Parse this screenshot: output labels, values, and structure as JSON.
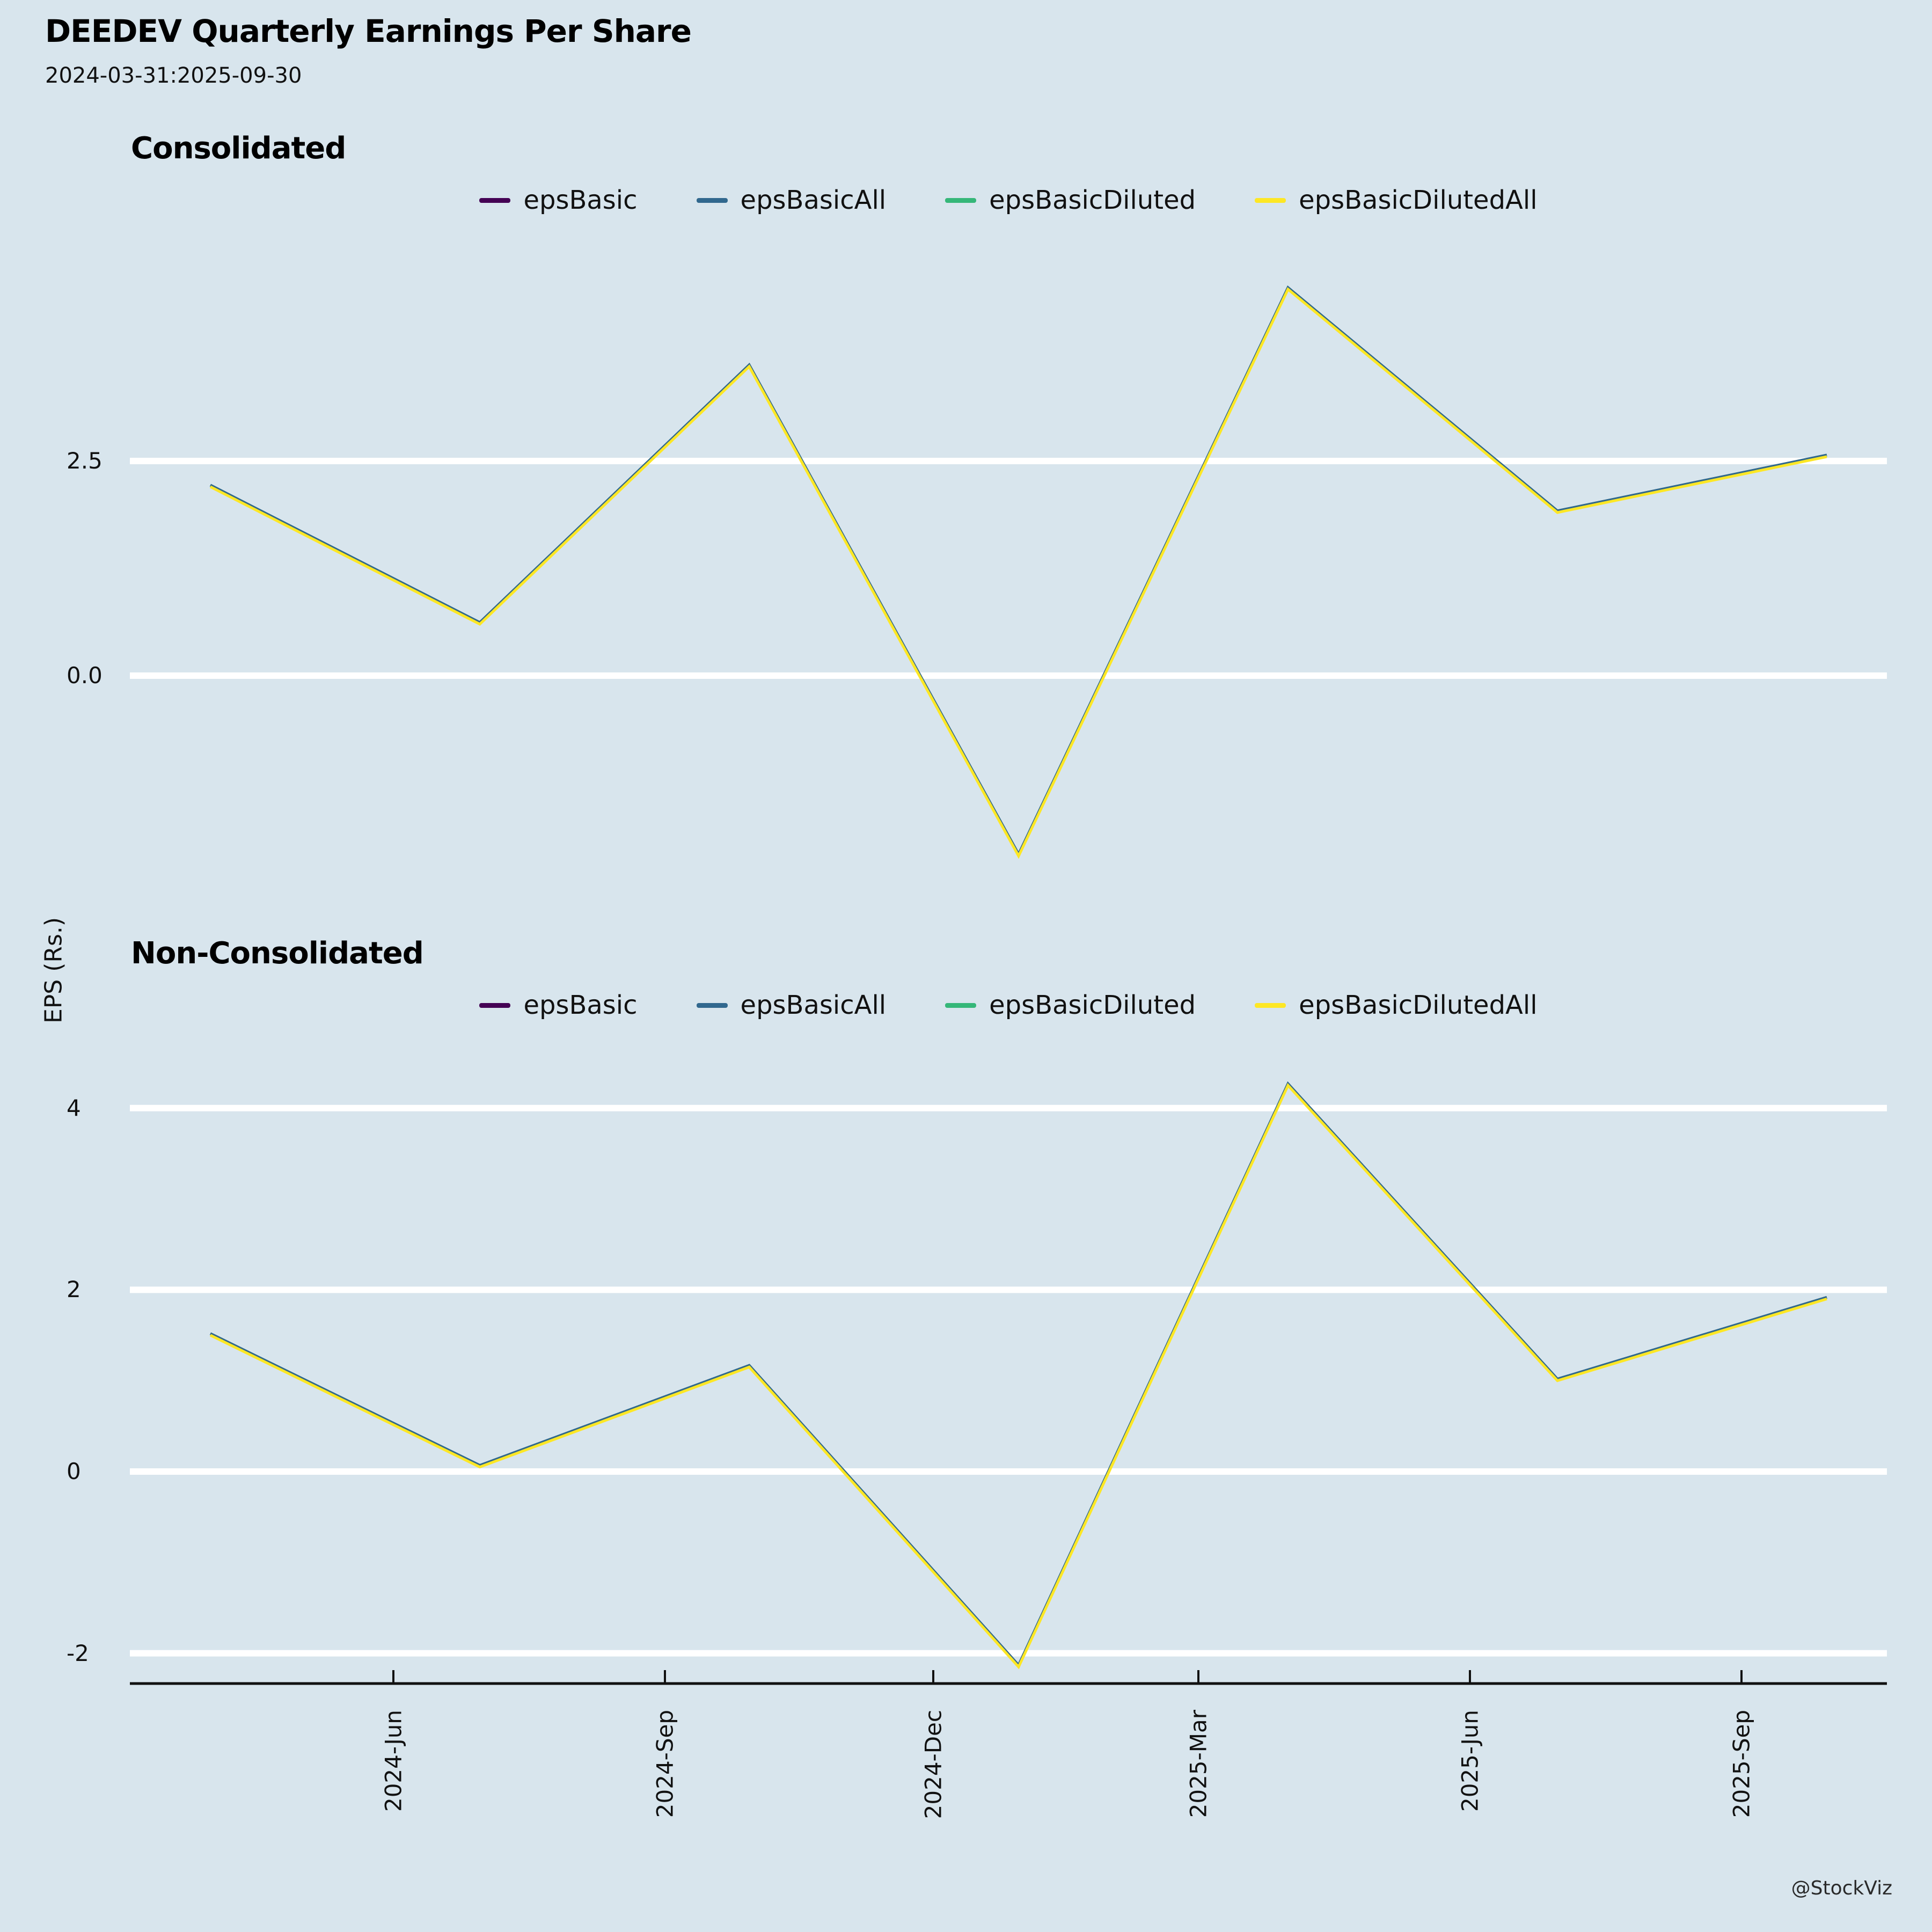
{
  "header": {
    "title": "DEEDEV Quarterly Earnings Per Share",
    "subtitle": "2024-03-31:2025-09-30"
  },
  "y_axis_label": "EPS (Rs.)",
  "footer": "@StockViz",
  "legend": {
    "items": [
      {
        "label": "epsBasic",
        "color": "#440154"
      },
      {
        "label": "epsBasicAll",
        "color": "#31688e"
      },
      {
        "label": "epsBasicDiluted",
        "color": "#35b779"
      },
      {
        "label": "epsBasicDilutedAll",
        "color": "#fde725"
      }
    ]
  },
  "chart_data": [
    {
      "type": "line",
      "title": "Consolidated",
      "categories": [
        "2024-03-31",
        "2024-06-30",
        "2024-09-30",
        "2024-12-31",
        "2025-03-31",
        "2025-06-30",
        "2025-09-30"
      ],
      "x_tick_labels": [
        "2024-Jun",
        "2024-Sep",
        "2024-Dec",
        "2025-Mar",
        "2025-Jun",
        "2025-Sep"
      ],
      "ylabel": "EPS (Rs.)",
      "ylim": [
        -2.7,
        4.9
      ],
      "grid": "horizontal-white",
      "legend_position": "top-center",
      "y_ticks": [
        {
          "label": "2.5",
          "value": 2.5
        },
        {
          "label": "0.0",
          "value": 0
        }
      ],
      "series": [
        {
          "name": "epsBasic",
          "color": "#440154",
          "values": [
            2.2,
            0.6,
            3.6,
            -2.1,
            4.5,
            1.9,
            2.55
          ]
        },
        {
          "name": "epsBasicAll",
          "color": "#31688e",
          "values": [
            2.2,
            0.6,
            3.6,
            -2.1,
            4.5,
            1.9,
            2.55
          ]
        },
        {
          "name": "epsBasicDiluted",
          "color": "#35b779",
          "values": [
            2.2,
            0.6,
            3.6,
            -2.1,
            4.5,
            1.9,
            2.55
          ]
        },
        {
          "name": "epsBasicDilutedAll",
          "color": "#fde725",
          "values": [
            2.2,
            0.6,
            3.6,
            -2.1,
            4.5,
            1.9,
            2.55
          ]
        }
      ]
    },
    {
      "type": "line",
      "title": "Non-Consolidated",
      "categories": [
        "2024-03-31",
        "2024-06-30",
        "2024-09-30",
        "2024-12-31",
        "2025-03-31",
        "2025-06-30",
        "2025-09-30"
      ],
      "x_tick_labels": [
        "2024-Jun",
        "2024-Sep",
        "2024-Dec",
        "2025-Mar",
        "2025-Jun",
        "2025-Sep"
      ],
      "ylabel": "EPS (Rs.)",
      "ylim": [
        -2.4,
        4.6
      ],
      "grid": "horizontal-white",
      "legend_position": "top-center",
      "y_ticks": [
        {
          "label": "4",
          "value": 4
        },
        {
          "label": "2",
          "value": 2
        },
        {
          "label": "0",
          "value": 0
        },
        {
          "label": "-2",
          "value": -2
        }
      ],
      "series": [
        {
          "name": "epsBasic",
          "color": "#440154",
          "values": [
            1.5,
            0.05,
            1.15,
            -2.15,
            4.25,
            1.0,
            1.9
          ]
        },
        {
          "name": "epsBasicAll",
          "color": "#31688e",
          "values": [
            1.5,
            0.05,
            1.15,
            -2.15,
            4.25,
            1.0,
            1.9
          ]
        },
        {
          "name": "epsBasicDiluted",
          "color": "#35b779",
          "values": [
            1.5,
            0.05,
            1.15,
            -2.15,
            4.25,
            1.0,
            1.9
          ]
        },
        {
          "name": "epsBasicDilutedAll",
          "color": "#fde725",
          "values": [
            1.5,
            0.05,
            1.15,
            -2.15,
            4.25,
            1.0,
            1.9
          ]
        }
      ]
    }
  ]
}
